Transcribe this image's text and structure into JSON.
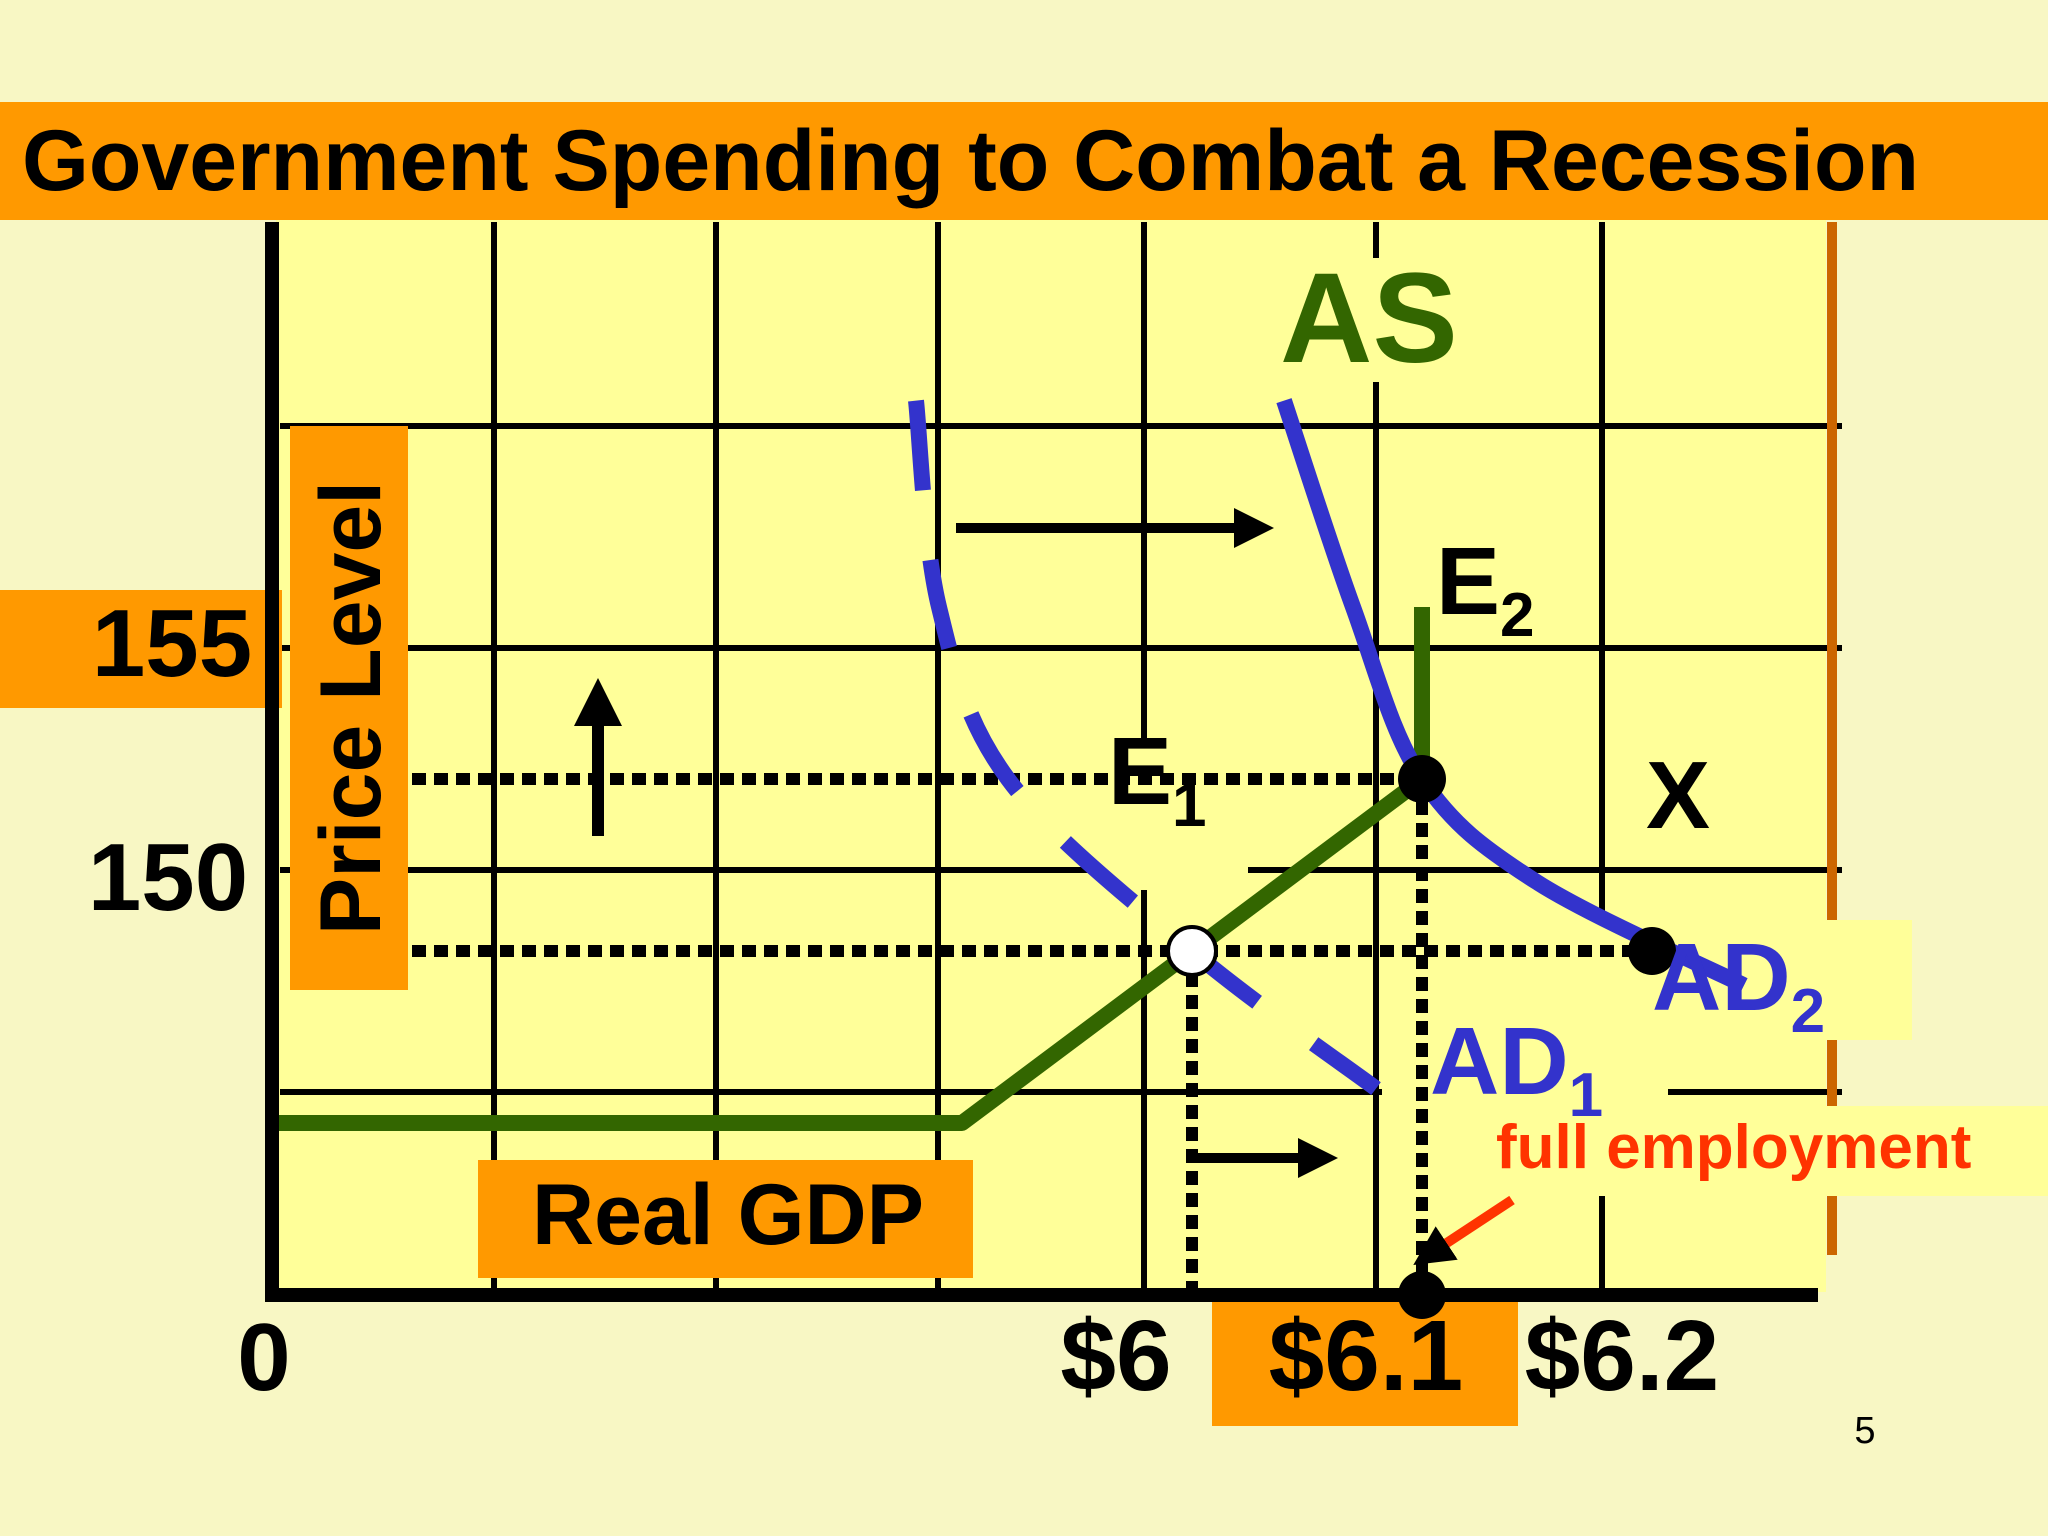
{
  "slide": {
    "title": "Government Spending to Combat a Recession",
    "slide_number": "5",
    "colors": {
      "background": "#f8f7c4",
      "plot_background": "#ffff99",
      "accent": "#ff9900",
      "aggregate_supply": "#336600",
      "aggregate_demand": "#3333cc",
      "callout": "#ff3300"
    }
  },
  "chart_data": {
    "type": "line",
    "title": "Government Spending to Combat a Recession",
    "xlabel": "Real GDP",
    "ylabel": "Price Level",
    "origin_label": "0",
    "x_ticks": [
      {
        "value": 6.0,
        "label": "$6"
      },
      {
        "value": 6.1,
        "label": "$6.1"
      },
      {
        "value": 6.2,
        "label": "$6.2"
      }
    ],
    "y_ticks": [
      {
        "value": 150,
        "label": "150"
      },
      {
        "value": 155,
        "label": "155"
      }
    ],
    "xlim": [
      5.6,
      6.3
    ],
    "ylim": [
      140,
      165
    ],
    "grid": true,
    "series": [
      {
        "name": "AS",
        "style": "solid",
        "color": "#336600",
        "points": [
          [
            5.6,
            145
          ],
          [
            5.9,
            145
          ],
          [
            6.0,
            150
          ],
          [
            6.1,
            155
          ],
          [
            6.1,
            160
          ]
        ]
      },
      {
        "name": "AD1",
        "label_main": "AD",
        "label_sub": "1",
        "style": "dashed",
        "color": "#3333cc",
        "points": [
          [
            5.88,
            166
          ],
          [
            5.89,
            160
          ],
          [
            5.92,
            155
          ],
          [
            6.0,
            150
          ],
          [
            6.08,
            146
          ]
        ]
      },
      {
        "name": "AD2",
        "label_main": "AD",
        "label_sub": "2",
        "style": "solid",
        "color": "#3333cc",
        "points": [
          [
            6.04,
            166
          ],
          [
            6.07,
            160
          ],
          [
            6.1,
            155
          ],
          [
            6.15,
            152
          ],
          [
            6.24,
            149
          ]
        ]
      }
    ],
    "points": [
      {
        "name": "E1",
        "label_main": "E",
        "label_sub": "1",
        "x": 6.0,
        "y": 150,
        "fill": "white"
      },
      {
        "name": "E2",
        "label_main": "E",
        "label_sub": "2",
        "x": 6.1,
        "y": 155,
        "fill": "black"
      },
      {
        "name": "X",
        "label_main": "X",
        "label_sub": "",
        "x": 6.2,
        "y": 150,
        "fill": "black"
      },
      {
        "name": "full-employment-point",
        "label_main": "",
        "label_sub": "",
        "x": 6.1,
        "y": 140,
        "fill": "black"
      }
    ],
    "annotations": [
      {
        "text": "full employment",
        "color": "#ff3300"
      }
    ]
  }
}
